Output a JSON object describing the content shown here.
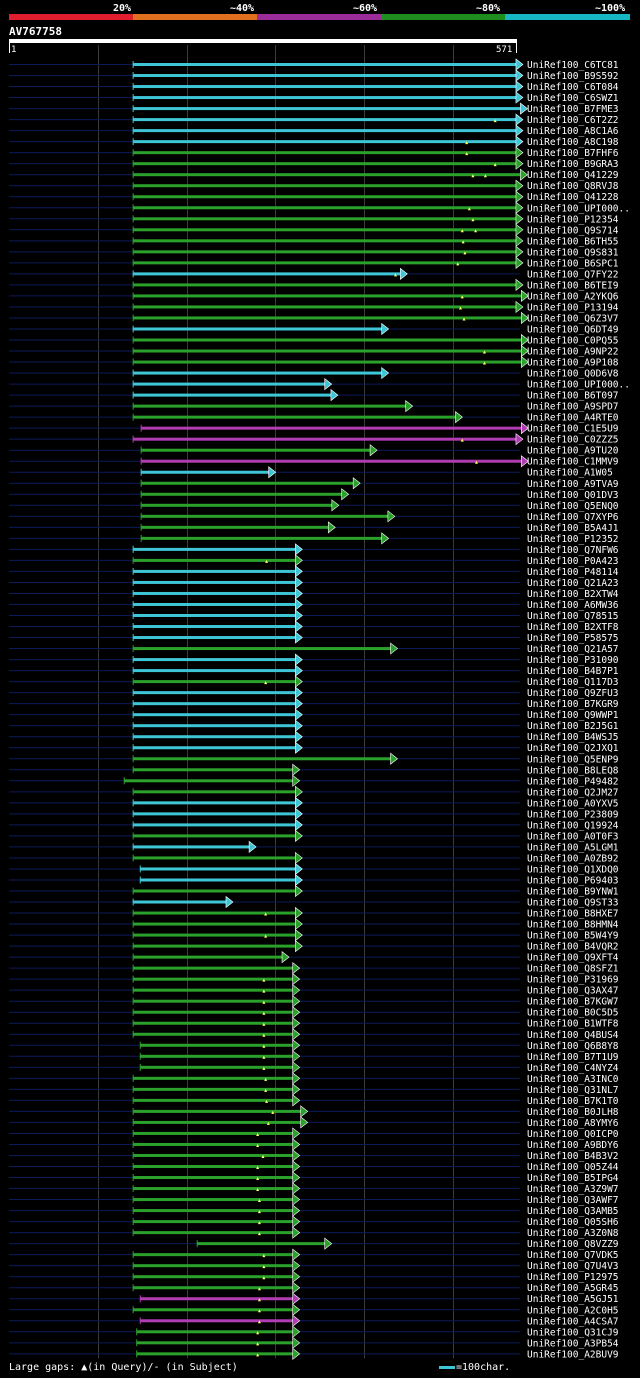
{
  "header": {
    "scale_labels": [
      "20%",
      "~40%",
      "~60%",
      "~80%",
      "~100%"
    ],
    "scale_colors": [
      "#e01e2e",
      "#e0701e",
      "#9b2d9b",
      "#1e8c1e",
      "#16b6c4"
    ],
    "query_id": "AV767758",
    "query_start": "1",
    "query_end": "571"
  },
  "colors": {
    "background": "#000000",
    "cyan": "#3ec6d6",
    "green": "#2aa12a",
    "magenta": "#b23cb2",
    "row_line": "#0c1a5a",
    "grid": "#3a3a3a",
    "gap_marker": "#ffff66",
    "text": "#ffffff"
  },
  "footer": {
    "legend": "Large gaps: ▲(in Query)/- (in Subject)",
    "scale": "=100char."
  },
  "chart_data": {
    "type": "alignment",
    "query_length": 571,
    "hits": [
      {
        "id": "UniRef100_C6TC81",
        "start": 140,
        "end": 576,
        "color": "cyan",
        "gaps": []
      },
      {
        "id": "UniRef100_B9S592",
        "start": 140,
        "end": 576,
        "color": "cyan",
        "gaps": []
      },
      {
        "id": "UniRef100_C6T084",
        "start": 140,
        "end": 576,
        "color": "cyan",
        "gaps": []
      },
      {
        "id": "UniRef100_C6SWZ1",
        "start": 140,
        "end": 576,
        "color": "cyan",
        "gaps": []
      },
      {
        "id": "UniRef100_B7FME3",
        "start": 140,
        "end": 581,
        "color": "cyan",
        "gaps": []
      },
      {
        "id": "UniRef100_C6T2Z2",
        "start": 140,
        "end": 576,
        "color": "cyan",
        "gaps": [
          547
        ]
      },
      {
        "id": "UniRef100_A8C1A6",
        "start": 140,
        "end": 576,
        "color": "cyan",
        "gaps": []
      },
      {
        "id": "UniRef100_A8C198",
        "start": 140,
        "end": 576,
        "color": "cyan",
        "gaps": [
          515
        ]
      },
      {
        "id": "UniRef100_B7FHF6",
        "start": 140,
        "end": 576,
        "color": "green",
        "gaps": [
          515
        ]
      },
      {
        "id": "UniRef100_B9GRA3",
        "start": 140,
        "end": 576,
        "color": "green",
        "gaps": [
          547
        ]
      },
      {
        "id": "UniRef100_Q41229",
        "start": 140,
        "end": 581,
        "color": "green",
        "gaps": [
          522,
          536
        ]
      },
      {
        "id": "UniRef100_Q8RVJ8",
        "start": 140,
        "end": 576,
        "color": "green",
        "gaps": []
      },
      {
        "id": "UniRef100_Q41228",
        "start": 140,
        "end": 576,
        "color": "green",
        "gaps": []
      },
      {
        "id": "UniRef100_UPI000..",
        "start": 140,
        "end": 576,
        "color": "green",
        "gaps": [
          518
        ]
      },
      {
        "id": "UniRef100_P12354",
        "start": 140,
        "end": 576,
        "color": "green",
        "gaps": [
          522
        ]
      },
      {
        "id": "UniRef100_Q9S714",
        "start": 140,
        "end": 576,
        "color": "green",
        "gaps": [
          510,
          525
        ]
      },
      {
        "id": "UniRef100_B6TH55",
        "start": 140,
        "end": 576,
        "color": "green",
        "gaps": [
          511
        ]
      },
      {
        "id": "UniRef100_Q9S831",
        "start": 140,
        "end": 576,
        "color": "green",
        "gaps": [
          513
        ]
      },
      {
        "id": "UniRef100_B6SPC1",
        "start": 140,
        "end": 576,
        "color": "green",
        "gaps": [
          505
        ]
      },
      {
        "id": "UniRef100_Q7FY22",
        "start": 140,
        "end": 446,
        "color": "cyan",
        "gaps": [
          435
        ]
      },
      {
        "id": "UniRef100_B6TEI9",
        "start": 140,
        "end": 576,
        "color": "green",
        "gaps": []
      },
      {
        "id": "UniRef100_A2YKQ6",
        "start": 140,
        "end": 582,
        "color": "green",
        "gaps": [
          510
        ]
      },
      {
        "id": "UniRef100_P13194",
        "start": 140,
        "end": 576,
        "color": "green",
        "gaps": [
          508
        ]
      },
      {
        "id": "UniRef100_Q6Z3V7",
        "start": 140,
        "end": 582,
        "color": "green",
        "gaps": [
          512
        ]
      },
      {
        "id": "UniRef100_Q6DT49",
        "start": 140,
        "end": 425,
        "color": "cyan",
        "gaps": []
      },
      {
        "id": "UniRef100_C0PQ55",
        "start": 140,
        "end": 582,
        "color": "green",
        "gaps": []
      },
      {
        "id": "UniRef100_A9NP22",
        "start": 140,
        "end": 582,
        "color": "green",
        "gaps": [
          535
        ]
      },
      {
        "id": "UniRef100_A9P108",
        "start": 140,
        "end": 582,
        "color": "green",
        "gaps": [
          535
        ]
      },
      {
        "id": "UniRef100_Q0D6V8",
        "start": 140,
        "end": 425,
        "color": "cyan",
        "gaps": []
      },
      {
        "id": "UniRef100_UPI000..",
        "start": 140,
        "end": 361,
        "color": "cyan",
        "gaps": []
      },
      {
        "id": "UniRef100_B6T097",
        "start": 140,
        "end": 368,
        "color": "cyan",
        "gaps": []
      },
      {
        "id": "UniRef100_A9SPD7",
        "start": 140,
        "end": 452,
        "color": "green",
        "gaps": []
      },
      {
        "id": "UniRef100_A4RTE0",
        "start": 140,
        "end": 508,
        "color": "green",
        "gaps": []
      },
      {
        "id": "UniRef100_C1E5U9",
        "start": 149,
        "end": 582,
        "color": "magenta",
        "gaps": []
      },
      {
        "id": "UniRef100_C0ZZZ5",
        "start": 140,
        "end": 576,
        "color": "magenta",
        "gaps": [
          510
        ]
      },
      {
        "id": "UniRef100_A9TU20",
        "start": 149,
        "end": 412,
        "color": "green",
        "gaps": []
      },
      {
        "id": "UniRef100_C1MMV9",
        "start": 149,
        "end": 582,
        "color": "magenta",
        "gaps": [
          526
        ]
      },
      {
        "id": "UniRef100_A1W05",
        "start": 149,
        "end": 298,
        "color": "cyan",
        "gaps": []
      },
      {
        "id": "UniRef100_A9TVA9",
        "start": 149,
        "end": 393,
        "color": "green",
        "gaps": []
      },
      {
        "id": "UniRef100_Q01DV3",
        "start": 149,
        "end": 380,
        "color": "green",
        "gaps": []
      },
      {
        "id": "UniRef100_Q5ENQ0",
        "start": 149,
        "end": 369,
        "color": "green",
        "gaps": []
      },
      {
        "id": "UniRef100_Q7XYP6",
        "start": 149,
        "end": 432,
        "color": "green",
        "gaps": []
      },
      {
        "id": "UniRef100_B5A4J1",
        "start": 149,
        "end": 365,
        "color": "green",
        "gaps": []
      },
      {
        "id": "UniRef100_P12352",
        "start": 149,
        "end": 425,
        "color": "green",
        "gaps": []
      },
      {
        "id": "UniRef100_Q7NFW6",
        "start": 140,
        "end": 328,
        "color": "cyan",
        "gaps": []
      },
      {
        "id": "UniRef100_P0A423",
        "start": 140,
        "end": 328,
        "color": "green",
        "gaps": [
          290
        ]
      },
      {
        "id": "UniRef100_P48114",
        "start": 140,
        "end": 328,
        "color": "cyan",
        "gaps": []
      },
      {
        "id": "UniRef100_Q21A23",
        "start": 140,
        "end": 328,
        "color": "cyan",
        "gaps": []
      },
      {
        "id": "UniRef100_B2XTW4",
        "start": 140,
        "end": 328,
        "color": "cyan",
        "gaps": []
      },
      {
        "id": "UniRef100_A6MW36",
        "start": 140,
        "end": 328,
        "color": "cyan",
        "gaps": []
      },
      {
        "id": "UniRef100_Q78515",
        "start": 140,
        "end": 328,
        "color": "cyan",
        "gaps": []
      },
      {
        "id": "UniRef100_B2XTF8",
        "start": 140,
        "end": 328,
        "color": "cyan",
        "gaps": []
      },
      {
        "id": "UniRef100_P58575",
        "start": 140,
        "end": 328,
        "color": "cyan",
        "gaps": []
      },
      {
        "id": "UniRef100_Q21A57",
        "start": 140,
        "end": 435,
        "color": "green",
        "gaps": []
      },
      {
        "id": "UniRef100_P31090",
        "start": 140,
        "end": 328,
        "color": "cyan",
        "gaps": []
      },
      {
        "id": "UniRef100_B4B7P1",
        "start": 140,
        "end": 328,
        "color": "cyan",
        "gaps": []
      },
      {
        "id": "UniRef100_Q117D3",
        "start": 140,
        "end": 328,
        "color": "green",
        "gaps": [
          289
        ]
      },
      {
        "id": "UniRef100_Q9ZFU3",
        "start": 140,
        "end": 328,
        "color": "cyan",
        "gaps": []
      },
      {
        "id": "UniRef100_B7KGR9",
        "start": 140,
        "end": 328,
        "color": "cyan",
        "gaps": []
      },
      {
        "id": "UniRef100_Q9WWP1",
        "start": 140,
        "end": 328,
        "color": "cyan",
        "gaps": []
      },
      {
        "id": "UniRef100_B2J5G1",
        "start": 140,
        "end": 328,
        "color": "cyan",
        "gaps": []
      },
      {
        "id": "UniRef100_B4WSJ5",
        "start": 140,
        "end": 328,
        "color": "cyan",
        "gaps": []
      },
      {
        "id": "UniRef100_Q2JXQ1",
        "start": 140,
        "end": 328,
        "color": "cyan",
        "gaps": []
      },
      {
        "id": "UniRef100_Q5ENP9",
        "start": 140,
        "end": 435,
        "color": "green",
        "gaps": []
      },
      {
        "id": "UniRef100_B8LEQ8",
        "start": 140,
        "end": 325,
        "color": "green",
        "gaps": []
      },
      {
        "id": "UniRef100_P49482",
        "start": 130,
        "end": 325,
        "color": "green",
        "gaps": []
      },
      {
        "id": "UniRef100_Q2JM27",
        "start": 140,
        "end": 328,
        "color": "green",
        "gaps": []
      },
      {
        "id": "UniRef100_A0YXV5",
        "start": 140,
        "end": 328,
        "color": "cyan",
        "gaps": []
      },
      {
        "id": "UniRef100_P23809",
        "start": 140,
        "end": 328,
        "color": "cyan",
        "gaps": []
      },
      {
        "id": "UniRef100_Q19924",
        "start": 140,
        "end": 328,
        "color": "cyan",
        "gaps": []
      },
      {
        "id": "UniRef100_A0T0F3",
        "start": 140,
        "end": 328,
        "color": "green",
        "gaps": []
      },
      {
        "id": "UniRef100_A5LGM1",
        "start": 140,
        "end": 276,
        "color": "cyan",
        "gaps": []
      },
      {
        "id": "UniRef100_A0ZB92",
        "start": 140,
        "end": 328,
        "color": "green",
        "gaps": []
      },
      {
        "id": "UniRef100_Q1XDQ0",
        "start": 148,
        "end": 328,
        "color": "cyan",
        "gaps": []
      },
      {
        "id": "UniRef100_P69403",
        "start": 148,
        "end": 328,
        "color": "cyan",
        "gaps": []
      },
      {
        "id": "UniRef100_B9YNW1",
        "start": 140,
        "end": 328,
        "color": "green",
        "gaps": []
      },
      {
        "id": "UniRef100_Q9ST33",
        "start": 140,
        "end": 250,
        "color": "cyan",
        "gaps": []
      },
      {
        "id": "UniRef100_B8HXE7",
        "start": 140,
        "end": 328,
        "color": "green",
        "gaps": [
          289
        ]
      },
      {
        "id": "UniRef100_B8HMN4",
        "start": 140,
        "end": 328,
        "color": "green",
        "gaps": []
      },
      {
        "id": "UniRef100_B5W4Y9",
        "start": 140,
        "end": 328,
        "color": "green",
        "gaps": [
          289
        ]
      },
      {
        "id": "UniRef100_B4VQR2",
        "start": 140,
        "end": 328,
        "color": "green",
        "gaps": []
      },
      {
        "id": "UniRef100_Q9XFT4",
        "start": 140,
        "end": 313,
        "color": "green",
        "gaps": []
      },
      {
        "id": "UniRef100_Q8SFZ1",
        "start": 140,
        "end": 325,
        "color": "green",
        "gaps": []
      },
      {
        "id": "UniRef100_P31969",
        "start": 140,
        "end": 325,
        "color": "green",
        "gaps": [
          287
        ]
      },
      {
        "id": "UniRef100_Q3AX47",
        "start": 140,
        "end": 325,
        "color": "green",
        "gaps": [
          287
        ]
      },
      {
        "id": "UniRef100_B7KGW7",
        "start": 140,
        "end": 325,
        "color": "green",
        "gaps": [
          287
        ]
      },
      {
        "id": "UniRef100_B0C5D5",
        "start": 140,
        "end": 325,
        "color": "green",
        "gaps": [
          287
        ]
      },
      {
        "id": "UniRef100_B1WTF8",
        "start": 140,
        "end": 325,
        "color": "green",
        "gaps": [
          287
        ]
      },
      {
        "id": "UniRef100_Q4BUS4",
        "start": 140,
        "end": 325,
        "color": "green",
        "gaps": [
          287
        ]
      },
      {
        "id": "UniRef100_Q6B8Y8",
        "start": 148,
        "end": 325,
        "color": "green",
        "gaps": [
          287
        ]
      },
      {
        "id": "UniRef100_B7T1U9",
        "start": 148,
        "end": 325,
        "color": "green",
        "gaps": [
          287
        ]
      },
      {
        "id": "UniRef100_C4NYZ4",
        "start": 148,
        "end": 325,
        "color": "green",
        "gaps": [
          287
        ]
      },
      {
        "id": "UniRef100_A3INC0",
        "start": 140,
        "end": 325,
        "color": "green",
        "gaps": [
          289
        ]
      },
      {
        "id": "UniRef100_Q31NL7",
        "start": 140,
        "end": 325,
        "color": "green",
        "gaps": [
          289
        ]
      },
      {
        "id": "UniRef100_B7K1T0",
        "start": 140,
        "end": 325,
        "color": "green",
        "gaps": [
          290
        ]
      },
      {
        "id": "UniRef100_B0JLH8",
        "start": 140,
        "end": 334,
        "color": "green",
        "gaps": [
          297
        ]
      },
      {
        "id": "UniRef100_A8YMY6",
        "start": 140,
        "end": 334,
        "color": "green",
        "gaps": [
          292
        ]
      },
      {
        "id": "UniRef100_Q0ICP0",
        "start": 140,
        "end": 325,
        "color": "green",
        "gaps": [
          280
        ]
      },
      {
        "id": "UniRef100_A9BDY6",
        "start": 140,
        "end": 325,
        "color": "green",
        "gaps": [
          280
        ]
      },
      {
        "id": "UniRef100_B4B3V2",
        "start": 140,
        "end": 325,
        "color": "green",
        "gaps": [
          286
        ]
      },
      {
        "id": "UniRef100_Q05Z44",
        "start": 140,
        "end": 325,
        "color": "green",
        "gaps": [
          280
        ]
      },
      {
        "id": "UniRef100_B5IPG4",
        "start": 140,
        "end": 325,
        "color": "green",
        "gaps": [
          280
        ]
      },
      {
        "id": "UniRef100_A3Z9W7",
        "start": 140,
        "end": 325,
        "color": "green",
        "gaps": [
          280
        ]
      },
      {
        "id": "UniRef100_Q3AWF7",
        "start": 140,
        "end": 325,
        "color": "green",
        "gaps": [
          282
        ]
      },
      {
        "id": "UniRef100_Q3AMB5",
        "start": 140,
        "end": 325,
        "color": "green",
        "gaps": [
          282
        ]
      },
      {
        "id": "UniRef100_Q05SH6",
        "start": 140,
        "end": 325,
        "color": "green",
        "gaps": [
          282
        ]
      },
      {
        "id": "UniRef100_A3Z0N8",
        "start": 140,
        "end": 325,
        "color": "green",
        "gaps": [
          282
        ]
      },
      {
        "id": "UniRef100_Q8VZZ9",
        "start": 212,
        "end": 361,
        "color": "green",
        "gaps": []
      },
      {
        "id": "UniRef100_Q7VDK5",
        "start": 140,
        "end": 325,
        "color": "green",
        "gaps": [
          287
        ]
      },
      {
        "id": "UniRef100_Q7U4V3",
        "start": 140,
        "end": 325,
        "color": "green",
        "gaps": [
          287
        ]
      },
      {
        "id": "UniRef100_P12975",
        "start": 140,
        "end": 325,
        "color": "green",
        "gaps": [
          287
        ]
      },
      {
        "id": "UniRef100_A5GR45",
        "start": 140,
        "end": 325,
        "color": "green",
        "gaps": [
          282
        ]
      },
      {
        "id": "UniRef100_A5GJ51",
        "start": 148,
        "end": 325,
        "color": "magenta",
        "gaps": [
          282
        ]
      },
      {
        "id": "UniRef100_A2C0H5",
        "start": 140,
        "end": 325,
        "color": "green",
        "gaps": [
          282
        ]
      },
      {
        "id": "UniRef100_A4CSA7",
        "start": 148,
        "end": 325,
        "color": "magenta",
        "gaps": [
          282
        ]
      },
      {
        "id": "UniRef100_Q31CJ9",
        "start": 144,
        "end": 325,
        "color": "green",
        "gaps": [
          280
        ]
      },
      {
        "id": "UniRef100_A3PB54",
        "start": 144,
        "end": 325,
        "color": "green",
        "gaps": [
          280
        ]
      },
      {
        "id": "UniRef100_A2BUV9",
        "start": 144,
        "end": 325,
        "color": "green",
        "gaps": [
          280
        ]
      }
    ]
  }
}
